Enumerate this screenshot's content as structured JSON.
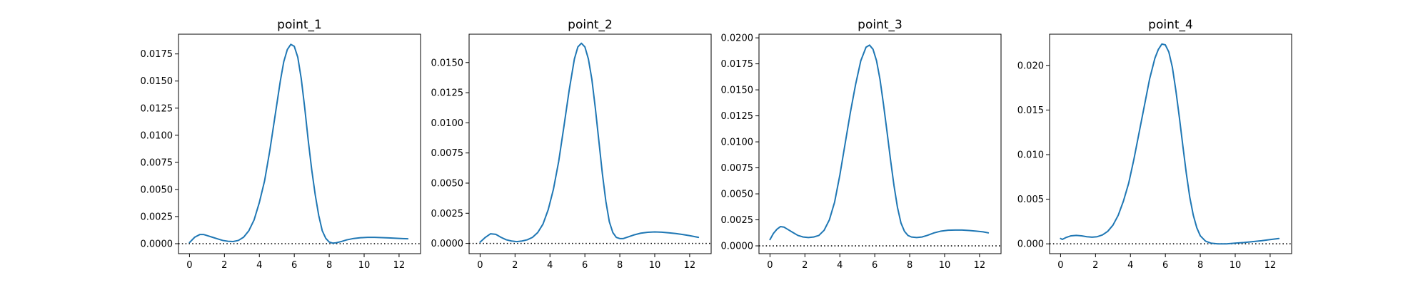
{
  "chart_data": [
    {
      "type": "line",
      "title": "point_1",
      "xlim": [
        -0.63,
        13.23
      ],
      "ylim": [
        -0.00092,
        0.01932
      ],
      "xticks": [
        0,
        2,
        4,
        6,
        8,
        10,
        12
      ],
      "yticks": [
        0.0,
        0.0025,
        0.005,
        0.0075,
        0.01,
        0.0125,
        0.015,
        0.0175
      ],
      "ytick_labels": [
        "0.0000",
        "0.0025",
        "0.0050",
        "0.0075",
        "0.0100",
        "0.0125",
        "0.0150",
        "0.0175"
      ],
      "reference_line": {
        "y": 0,
        "style": "dotted"
      },
      "series": [
        {
          "color": "#1f77b4",
          "x": [
            0,
            0.3,
            0.6,
            0.8,
            1.0,
            1.3,
            1.6,
            1.9,
            2.2,
            2.5,
            2.8,
            3.1,
            3.4,
            3.7,
            4.0,
            4.3,
            4.6,
            4.9,
            5.2,
            5.4,
            5.6,
            5.8,
            6.0,
            6.2,
            6.4,
            6.6,
            6.8,
            7.0,
            7.2,
            7.4,
            7.6,
            7.8,
            8.0,
            8.2,
            8.4,
            8.7,
            9.0,
            9.4,
            9.8,
            10.2,
            10.6,
            11.0,
            11.4,
            11.8,
            12.2,
            12.5
          ],
          "y": [
            0.0001,
            0.0006,
            0.00085,
            0.00085,
            0.00075,
            0.0006,
            0.00045,
            0.0003,
            0.00022,
            0.0002,
            0.0003,
            0.0006,
            0.0012,
            0.0022,
            0.0038,
            0.0058,
            0.0086,
            0.0118,
            0.015,
            0.0168,
            0.0179,
            0.01838,
            0.0182,
            0.0172,
            0.0152,
            0.0125,
            0.0095,
            0.0068,
            0.0045,
            0.0026,
            0.0012,
            0.0005,
            0.00015,
            5e-05,
            8e-05,
            0.0002,
            0.00035,
            0.00048,
            0.00055,
            0.00058,
            0.00058,
            0.00056,
            0.00053,
            0.0005,
            0.00047,
            0.00045
          ]
        }
      ]
    },
    {
      "type": "line",
      "title": "point_2",
      "xlim": [
        -0.63,
        13.23
      ],
      "ylim": [
        -0.00085,
        0.01735
      ],
      "xticks": [
        0,
        2,
        4,
        6,
        8,
        10,
        12
      ],
      "yticks": [
        0.0,
        0.0025,
        0.005,
        0.0075,
        0.01,
        0.0125,
        0.015
      ],
      "ytick_labels": [
        "0.0000",
        "0.0025",
        "0.0050",
        "0.0075",
        "0.0100",
        "0.0125",
        "0.0150"
      ],
      "reference_line": {
        "y": 0,
        "style": "dotted"
      },
      "series": [
        {
          "color": "#1f77b4",
          "x": [
            0,
            0.3,
            0.6,
            0.9,
            1.2,
            1.5,
            1.8,
            2.1,
            2.4,
            2.7,
            3.0,
            3.3,
            3.6,
            3.9,
            4.2,
            4.5,
            4.8,
            5.1,
            5.4,
            5.6,
            5.8,
            6.0,
            6.2,
            6.4,
            6.6,
            6.8,
            7.0,
            7.2,
            7.4,
            7.6,
            7.8,
            8.0,
            8.2,
            8.5,
            8.8,
            9.2,
            9.6,
            10.0,
            10.4,
            10.8,
            11.2,
            11.6,
            12.0,
            12.5
          ],
          "y": [
            0.0001,
            0.0005,
            0.0008,
            0.00075,
            0.0005,
            0.0003,
            0.0002,
            0.00015,
            0.0002,
            0.0003,
            0.0005,
            0.0009,
            0.0016,
            0.0028,
            0.0045,
            0.0068,
            0.0097,
            0.0127,
            0.0153,
            0.0163,
            0.0166,
            0.0163,
            0.0153,
            0.0136,
            0.0112,
            0.0085,
            0.0058,
            0.0035,
            0.0018,
            0.0009,
            0.0005,
            0.0004,
            0.0004,
            0.00055,
            0.0007,
            0.00085,
            0.00092,
            0.00095,
            0.00093,
            0.00088,
            0.00082,
            0.00074,
            0.00064,
            0.0005
          ]
        }
      ]
    },
    {
      "type": "line",
      "title": "point_3",
      "xlim": [
        -0.63,
        13.23
      ],
      "ylim": [
        -0.00075,
        0.02035
      ],
      "xticks": [
        0,
        2,
        4,
        6,
        8,
        10,
        12
      ],
      "yticks": [
        0.0,
        0.0025,
        0.005,
        0.0075,
        0.01,
        0.0125,
        0.015,
        0.0175,
        0.02
      ],
      "ytick_labels": [
        "0.0000",
        "0.0025",
        "0.0050",
        "0.0075",
        "0.0100",
        "0.0125",
        "0.0150",
        "0.0175",
        "0.0200"
      ],
      "reference_line": {
        "y": 0,
        "style": "dotted"
      },
      "series": [
        {
          "color": "#1f77b4",
          "x": [
            0,
            0.2,
            0.4,
            0.6,
            0.8,
            1.0,
            1.3,
            1.6,
            1.9,
            2.2,
            2.5,
            2.8,
            3.1,
            3.4,
            3.7,
            4.0,
            4.3,
            4.6,
            4.9,
            5.2,
            5.5,
            5.7,
            5.9,
            6.1,
            6.3,
            6.5,
            6.7,
            6.9,
            7.1,
            7.3,
            7.5,
            7.7,
            7.9,
            8.1,
            8.4,
            8.7,
            9.0,
            9.4,
            9.8,
            10.2,
            10.6,
            11.0,
            11.4,
            11.8,
            12.2,
            12.5
          ],
          "y": [
            0.0006,
            0.0012,
            0.0016,
            0.00185,
            0.0018,
            0.0016,
            0.0013,
            0.001,
            0.00085,
            0.0008,
            0.00085,
            0.001,
            0.0015,
            0.0025,
            0.0042,
            0.0068,
            0.0098,
            0.0128,
            0.0155,
            0.0178,
            0.0191,
            0.0193,
            0.0189,
            0.0178,
            0.016,
            0.0136,
            0.011,
            0.0083,
            0.0058,
            0.0037,
            0.0022,
            0.0014,
            0.001,
            0.00085,
            0.0008,
            0.00085,
            0.001,
            0.00125,
            0.00142,
            0.0015,
            0.00152,
            0.00152,
            0.00148,
            0.00142,
            0.00135,
            0.00125
          ]
        }
      ]
    },
    {
      "type": "line",
      "title": "point_4",
      "xlim": [
        -0.63,
        13.23
      ],
      "ylim": [
        -0.0011,
        0.0235
      ],
      "xticks": [
        0,
        2,
        4,
        6,
        8,
        10,
        12
      ],
      "yticks": [
        0.0,
        0.005,
        0.01,
        0.015,
        0.02
      ],
      "ytick_labels": [
        "0.000",
        "0.005",
        "0.010",
        "0.015",
        "0.020"
      ],
      "reference_line": {
        "y": 0,
        "style": "dotted"
      },
      "series": [
        {
          "color": "#1f77b4",
          "x": [
            0,
            0.1,
            0.3,
            0.6,
            0.9,
            1.2,
            1.5,
            1.8,
            2.1,
            2.4,
            2.7,
            3.0,
            3.3,
            3.6,
            3.9,
            4.2,
            4.5,
            4.8,
            5.1,
            5.4,
            5.6,
            5.8,
            6.0,
            6.2,
            6.4,
            6.6,
            6.8,
            7.0,
            7.2,
            7.4,
            7.6,
            7.8,
            8.0,
            8.3,
            8.6,
            9.0,
            9.5,
            10.0,
            10.5,
            11.0,
            11.5,
            12.0,
            12.5
          ],
          "y": [
            0.0006,
            0.0005,
            0.0007,
            0.0009,
            0.00095,
            0.0009,
            0.0008,
            0.00075,
            0.0008,
            0.001,
            0.0014,
            0.0021,
            0.0032,
            0.0048,
            0.0068,
            0.0095,
            0.0125,
            0.0155,
            0.0185,
            0.0208,
            0.0218,
            0.0224,
            0.0223,
            0.0215,
            0.0198,
            0.0172,
            0.0142,
            0.011,
            0.0079,
            0.0052,
            0.0032,
            0.0018,
            0.0009,
            0.0003,
            8e-05,
            0.0,
            0.0,
            8e-05,
            0.00015,
            0.00025,
            0.00035,
            0.00048,
            0.0006
          ]
        }
      ]
    }
  ]
}
